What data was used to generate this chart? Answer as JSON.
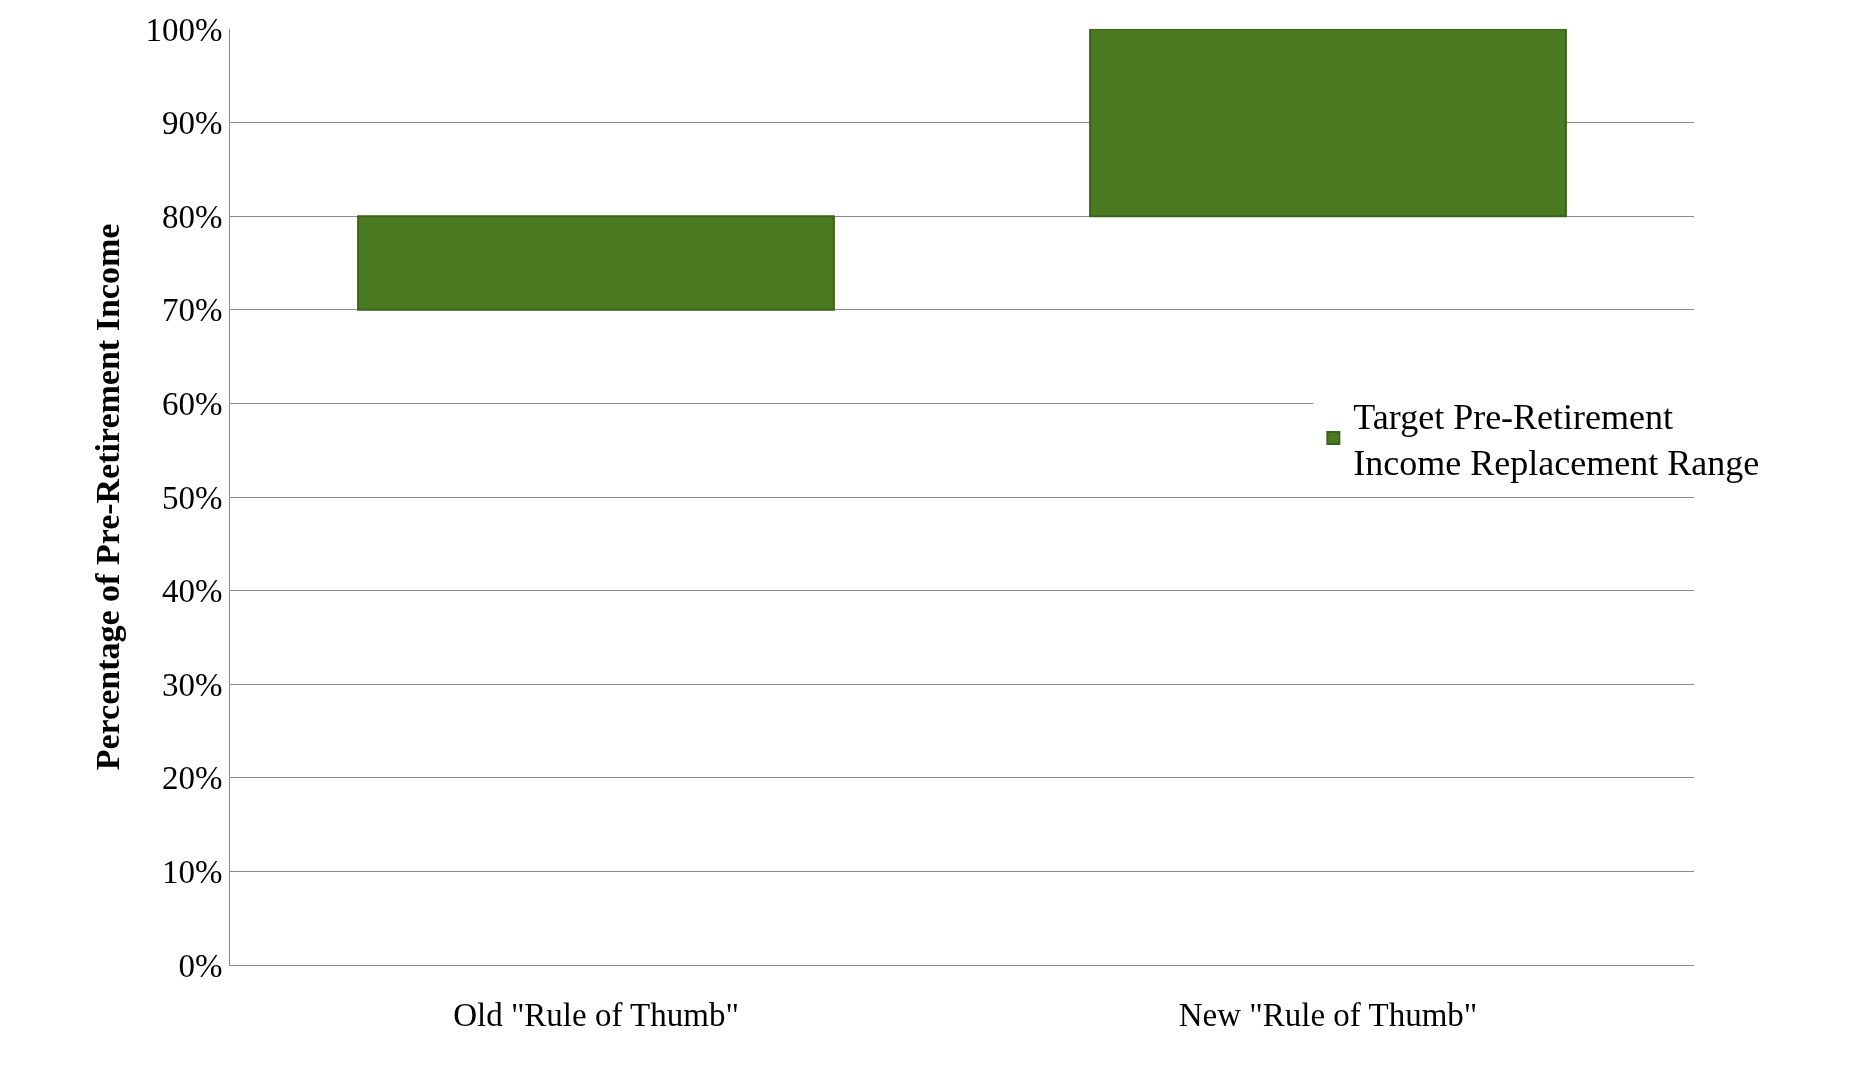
{
  "chart_data": {
    "type": "bar",
    "ylabel": "Percentage of Pre-Retirement Income",
    "categories": [
      "Old \"Rule of Thumb\"",
      "New \"Rule of Thumb\""
    ],
    "series": [
      {
        "name": "Target Pre-Retirement Income Replacement Range",
        "color": "#4a7a22",
        "values": [
          10,
          20
        ],
        "base": [
          70,
          80
        ]
      }
    ],
    "ylim": [
      0,
      100
    ],
    "yticks": [
      {
        "value": 0,
        "label": "0%"
      },
      {
        "value": 10,
        "label": "10%"
      },
      {
        "value": 20,
        "label": "20%"
      },
      {
        "value": 30,
        "label": "30%"
      },
      {
        "value": 40,
        "label": "40%"
      },
      {
        "value": 50,
        "label": "50%"
      },
      {
        "value": 60,
        "label": "60%"
      },
      {
        "value": 70,
        "label": "70%"
      },
      {
        "value": 80,
        "label": "80%"
      },
      {
        "value": 90,
        "label": "90%"
      },
      {
        "value": 100,
        "label": "100%"
      }
    ],
    "grid": "y",
    "legend": "right"
  }
}
